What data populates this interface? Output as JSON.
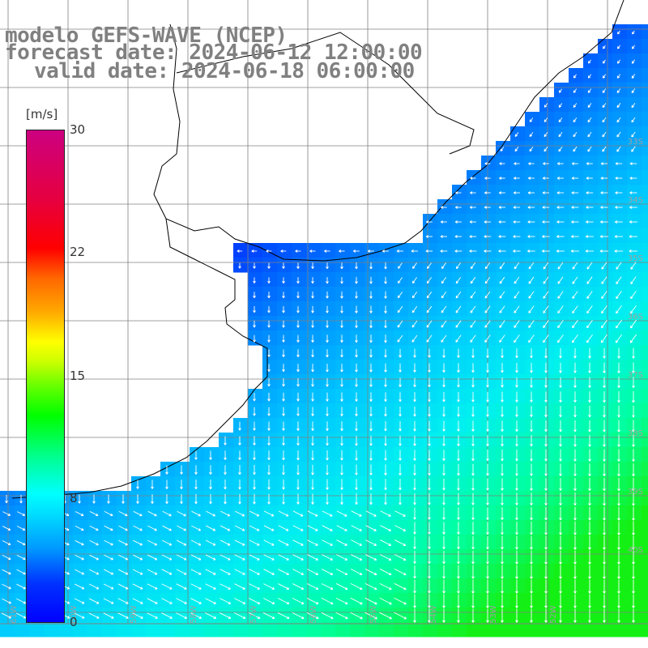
{
  "header": {
    "model": "modelo GEFS-WAVE (NCEP)",
    "forecast_date": "forecast date: 2024-06-12 12:00:00",
    "valid_date": "valid date: 2024-06-18 06:00:00"
  },
  "colorbar": {
    "unit": "[m/s]",
    "ticks": [
      "30",
      "22",
      "15",
      "8",
      "0"
    ],
    "colors": [
      "#0000ff",
      "#0099ff",
      "#00ffff",
      "#00ff00",
      "#ffff00",
      "#ff0000",
      "#cc0080"
    ]
  },
  "lat_labels": [
    "33S",
    "34S",
    "35S",
    "36S",
    "37S",
    "38S",
    "39S",
    "40S"
  ],
  "lon_labels": [
    "61W",
    "60W",
    "59W",
    "58W",
    "57W",
    "56W",
    "55W",
    "54W",
    "53W",
    "52W"
  ],
  "map": {
    "land_color": "#ffffff",
    "grid_color": "#808080",
    "coastline_color": "#000000",
    "arrow_color": "#ffffff",
    "field_description": "wind speed and direction over ocean"
  }
}
